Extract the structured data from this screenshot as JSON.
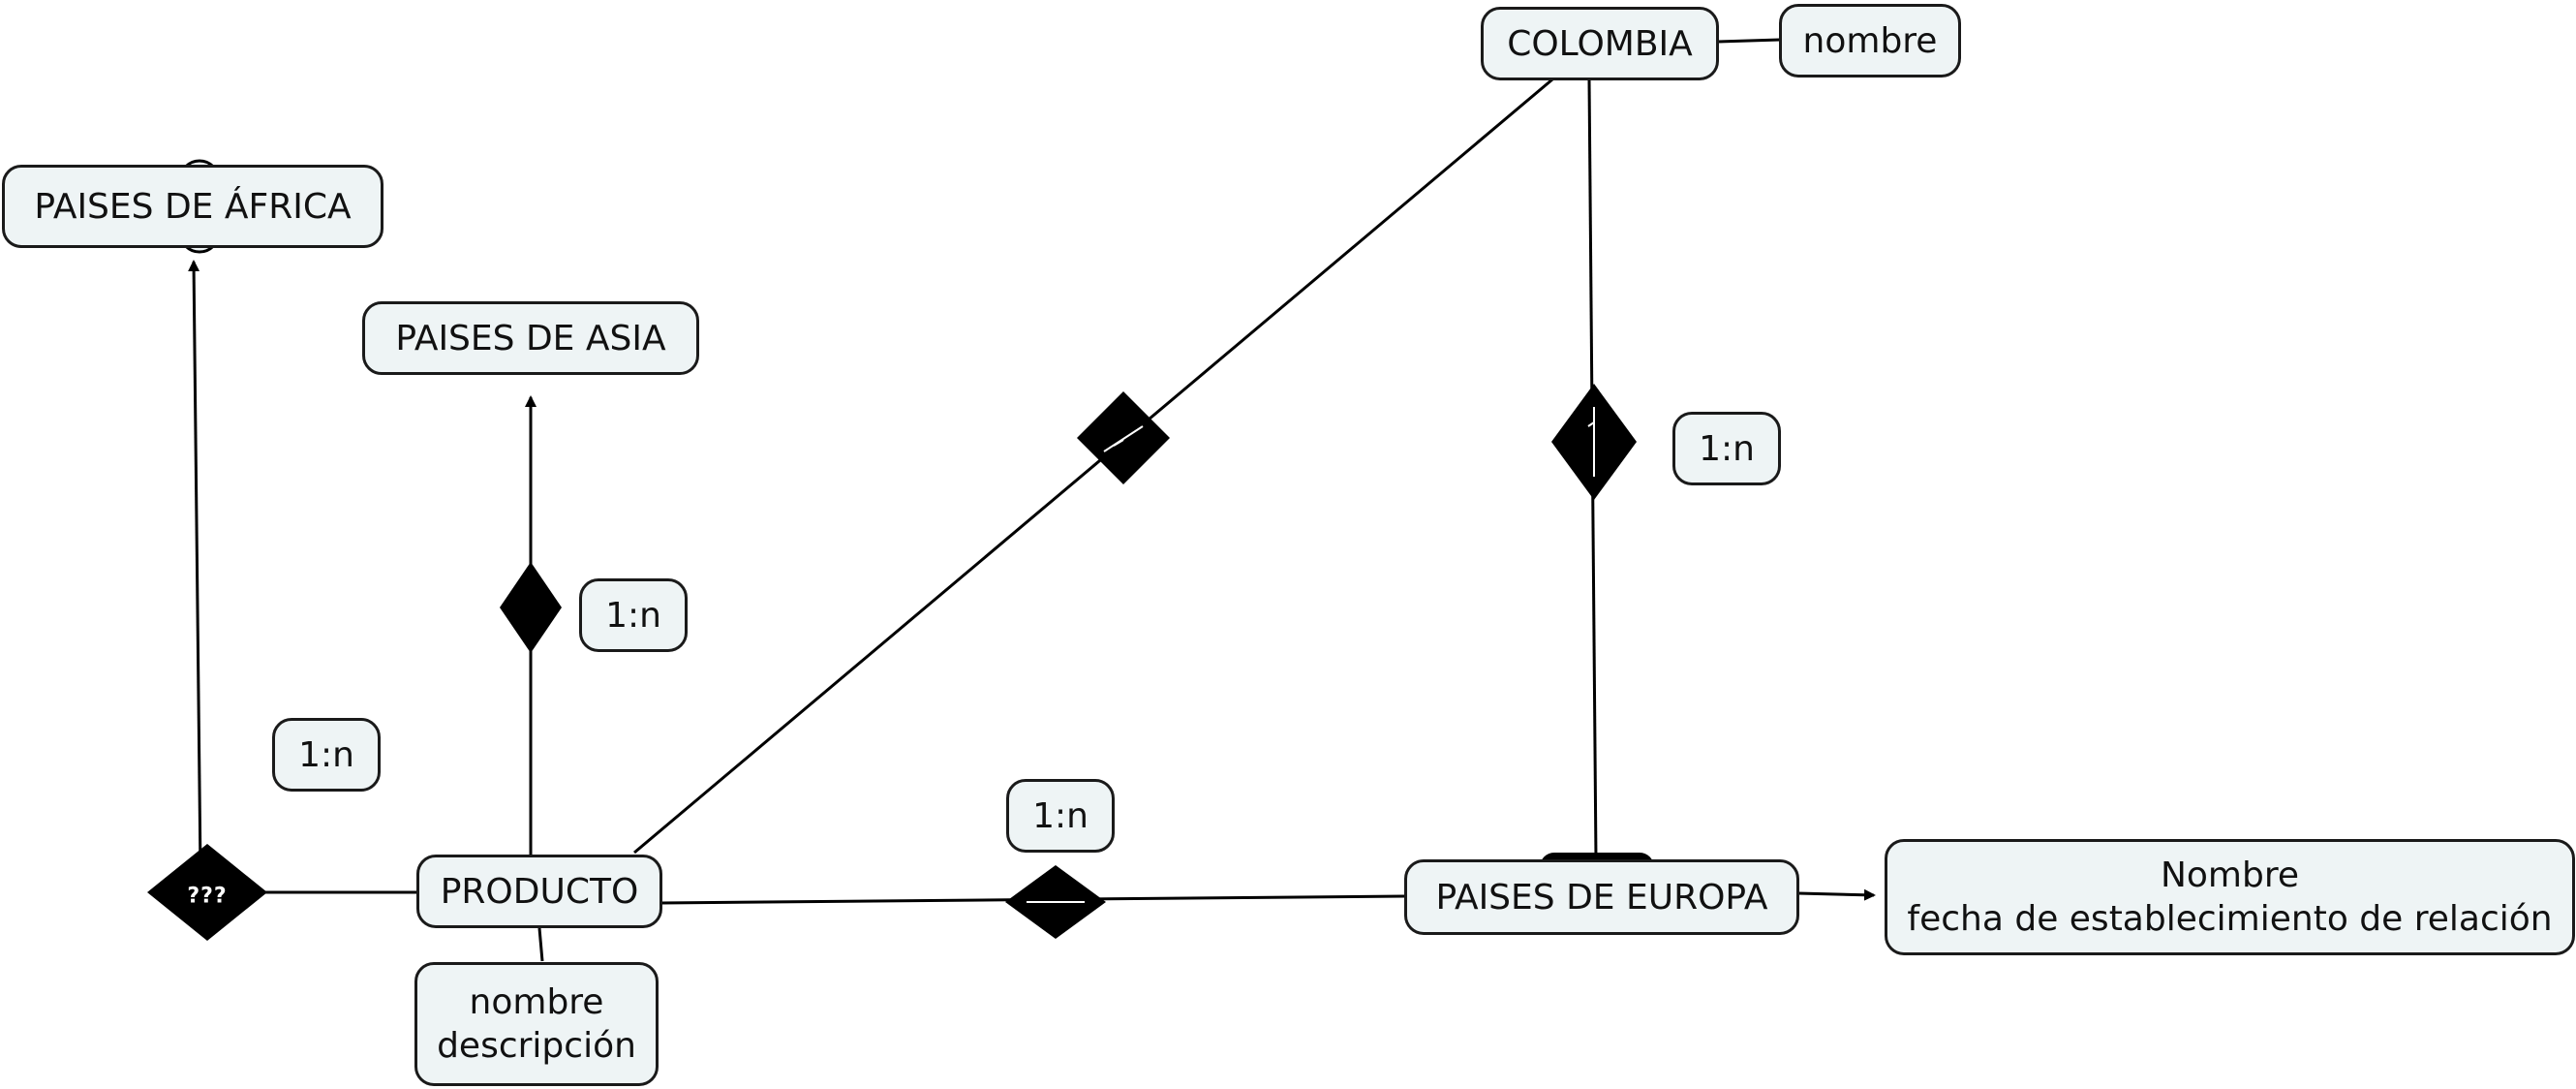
{
  "colors": {
    "node_fill": "#eef4f5",
    "stroke": "#000000"
  },
  "entities": {
    "colombia": "COLOMBIA",
    "colombia_attr": "nombre",
    "africa": "PAISES DE ÁFRICA",
    "asia": "PAISES DE ASIA",
    "producto": "PRODUCTO",
    "producto_attr_1": "nombre",
    "producto_attr_2": "descripción",
    "europa": "PAISES DE EUROPA",
    "relation_attr_1": "Nombre",
    "relation_attr_2": "fecha de establecimiento de relación"
  },
  "cardinalities": {
    "colombia_europa": "1:n",
    "producto_asia": "1:n",
    "producto_africa": "1:n",
    "producto_europa": "1:n"
  },
  "relationship_marks": {
    "africa_diamond": "???"
  }
}
